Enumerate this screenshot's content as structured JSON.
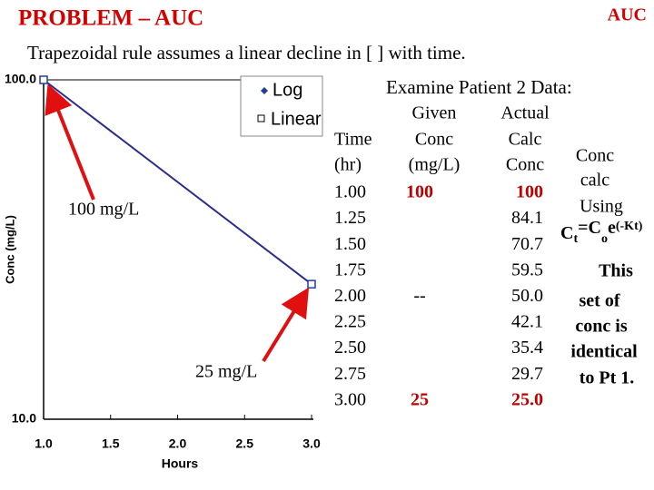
{
  "header": {
    "title": "PROBLEM – AUC",
    "corner": "AUC",
    "subtitle": "Trapezoidal rule assumes a linear decline in [ ] with time."
  },
  "chart_data": {
    "type": "line",
    "x": [
      1,
      3
    ],
    "values": [
      100,
      25
    ],
    "color": "#1f3f9f",
    "line_color": "#2c2c8c",
    "xlabel": "Hours",
    "ylabel": "Conc (mg/L)",
    "log_y": true,
    "xlim": [
      1,
      3
    ],
    "ylim": [
      10,
      100
    ],
    "xticks": [
      {
        "value": 1,
        "label": "1.0"
      },
      1.5,
      {
        "value": 2,
        "label": "2.0"
      },
      2.5,
      {
        "value": 3,
        "label": "3.0"
      }
    ],
    "yticks": [
      {
        "value": 10,
        "label": "10.0"
      },
      {
        "value": 100,
        "label": "100.0"
      }
    ],
    "legend": [
      "Log",
      "Linear"
    ]
  },
  "annotations": [
    "100 mg/L",
    "25 mg/L"
  ],
  "table": {
    "title": "Examine Patient 2 Data:",
    "headers": {
      "time": [
        "Time",
        "(hr)"
      ],
      "given": [
        "Given",
        "Conc",
        "(mg/L)"
      ],
      "calc": [
        "Actual",
        "Calc",
        "Conc"
      ]
    },
    "rows": [
      {
        "time": "1.00",
        "given": "100",
        "calc": "100"
      },
      {
        "time": "1.25",
        "calc": "84.1"
      },
      {
        "time": "1.50",
        "calc": "70.7"
      },
      {
        "time": "1.75",
        "calc": "59.5"
      },
      {
        "time": "2.00",
        "given": "--",
        "calc": "50.0"
      },
      {
        "time": "2.25",
        "calc": "42.1"
      },
      {
        "time": "2.50",
        "calc": "35.4"
      },
      {
        "time": "2.75",
        "calc": "29.7"
      },
      {
        "time": "3.00",
        "given": "25",
        "calc": "25.0"
      }
    ]
  },
  "note": {
    "lines": [
      "Conc",
      "calc",
      "Using"
    ],
    "formula": [
      "C",
      "t",
      "=C",
      "o",
      "e",
      "(-Kt)"
    ],
    "remark": [
      "This",
      "set of",
      "conc is",
      "identical",
      "to Pt 1."
    ]
  }
}
